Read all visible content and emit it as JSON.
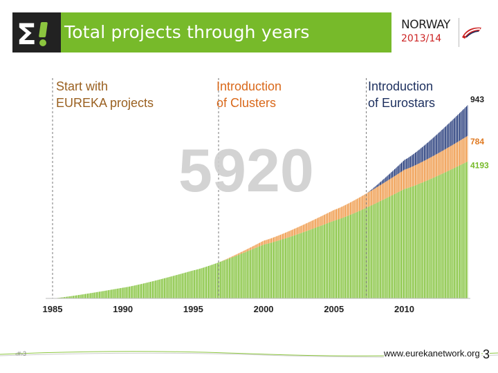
{
  "header": {
    "title": "Total projects through years",
    "event_name": "NORWAY",
    "event_years": "2013/14",
    "logo_icon": "sigma-exclamation-icon",
    "accent_color": "#77ba2a"
  },
  "annotations": [
    {
      "label": "Start with\nEUREKA projects",
      "year": 1985,
      "color": "#9a6020"
    },
    {
      "label": "Introduction\nof Clusters",
      "year": 1996.8,
      "color": "#d9681a"
    },
    {
      "label": "Introduction\nof Eurostars",
      "year": 2007.3,
      "color": "#1c2f5e"
    }
  ],
  "chart_data": {
    "type": "bar",
    "title": "Total projects through years",
    "stacked": true,
    "x_ticks": [
      "1985",
      "1990",
      "1995",
      "2000",
      "2005",
      "2010"
    ],
    "xlim": [
      1985,
      2014.5
    ],
    "ylim": [
      0,
      6000
    ],
    "total_label": "5920",
    "series": [
      {
        "name": "EUREKA projects",
        "color": "#86c440",
        "end_label": "4193",
        "label_color": "#77ba2a",
        "points": [
          [
            1985,
            0
          ],
          [
            1990,
            330
          ],
          [
            1995,
            860
          ],
          [
            2000,
            1650
          ],
          [
            2005,
            2380
          ],
          [
            2010,
            3350
          ],
          [
            2014.5,
            4193
          ]
        ]
      },
      {
        "name": "Clusters",
        "color": "#ef9a4a",
        "end_label": "784",
        "label_color": "#e07a22",
        "points": [
          [
            1996.8,
            0
          ],
          [
            2000,
            120
          ],
          [
            2005,
            330
          ],
          [
            2010,
            590
          ],
          [
            2014.5,
            784
          ]
        ]
      },
      {
        "name": "Eurostars",
        "color": "#243a7a",
        "end_label": "943",
        "label_color": "#222222",
        "points": [
          [
            2007.3,
            0
          ],
          [
            2010,
            300
          ],
          [
            2014.5,
            943
          ]
        ]
      }
    ]
  },
  "footer": {
    "left_mark": "‹#›3",
    "url": "www.eurekanetwork.org",
    "page_number": "3"
  }
}
